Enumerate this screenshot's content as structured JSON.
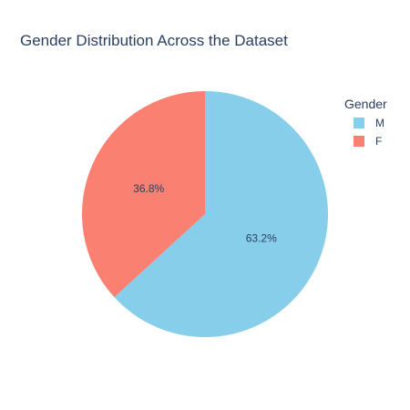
{
  "chart_data": {
    "type": "pie",
    "title": "Gender Distribution Across the Dataset",
    "legend_title": "Gender",
    "legend_position": "top-right",
    "direction": "clockwise",
    "start": "top",
    "slices": [
      {
        "label": "M",
        "value": 63.2,
        "display": "63.2%",
        "color": "#87ceeb"
      },
      {
        "label": "F",
        "value": 36.8,
        "display": "36.8%",
        "color": "#fa8072"
      }
    ]
  }
}
